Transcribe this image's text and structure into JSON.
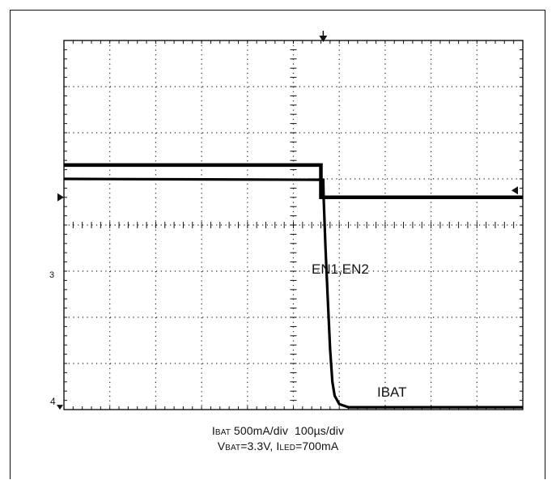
{
  "chart_data": {
    "type": "line",
    "title": "",
    "xlabel": "",
    "ylabel": "",
    "grid": true,
    "x_divisions": 10,
    "y_divisions": 8,
    "x_range_div": [
      0,
      10
    ],
    "y_range_div": [
      0,
      8
    ],
    "trigger_x_div": 5.65,
    "series": [
      {
        "name": "EN1,EN2",
        "channel_marker": "3",
        "x_div": [
          0,
          5.6,
          5.6,
          10
        ],
        "y_div": [
          5.3,
          5.3,
          4.6,
          4.6
        ]
      },
      {
        "name": "IBAT",
        "channel_marker": "4",
        "x_div": [
          0,
          5.65,
          5.66,
          5.7,
          5.75,
          5.8,
          5.85,
          5.9,
          6.0,
          6.2,
          10
        ],
        "y_div": [
          5.0,
          4.98,
          4.6,
          3.5,
          2.4,
          1.3,
          0.6,
          0.3,
          0.12,
          0.05,
          0.05
        ]
      }
    ],
    "trace_labels": {
      "en": "EN1,EN2",
      "ibat": "IBAT"
    },
    "channel_markers": {
      "ch3": "3",
      "ch4": "4"
    }
  },
  "caption": {
    "line1": {
      "ibat_sym": "I",
      "ibat_sub": "BAT",
      "ibat_rest": " 500mA/div  100µs/div"
    },
    "line2": {
      "vbat_sym": "V",
      "vbat_sub": "BAT",
      "vbat_rest": "=3.3V, I",
      "iled_sub": "LED",
      "iled_rest": "=700mA"
    }
  }
}
